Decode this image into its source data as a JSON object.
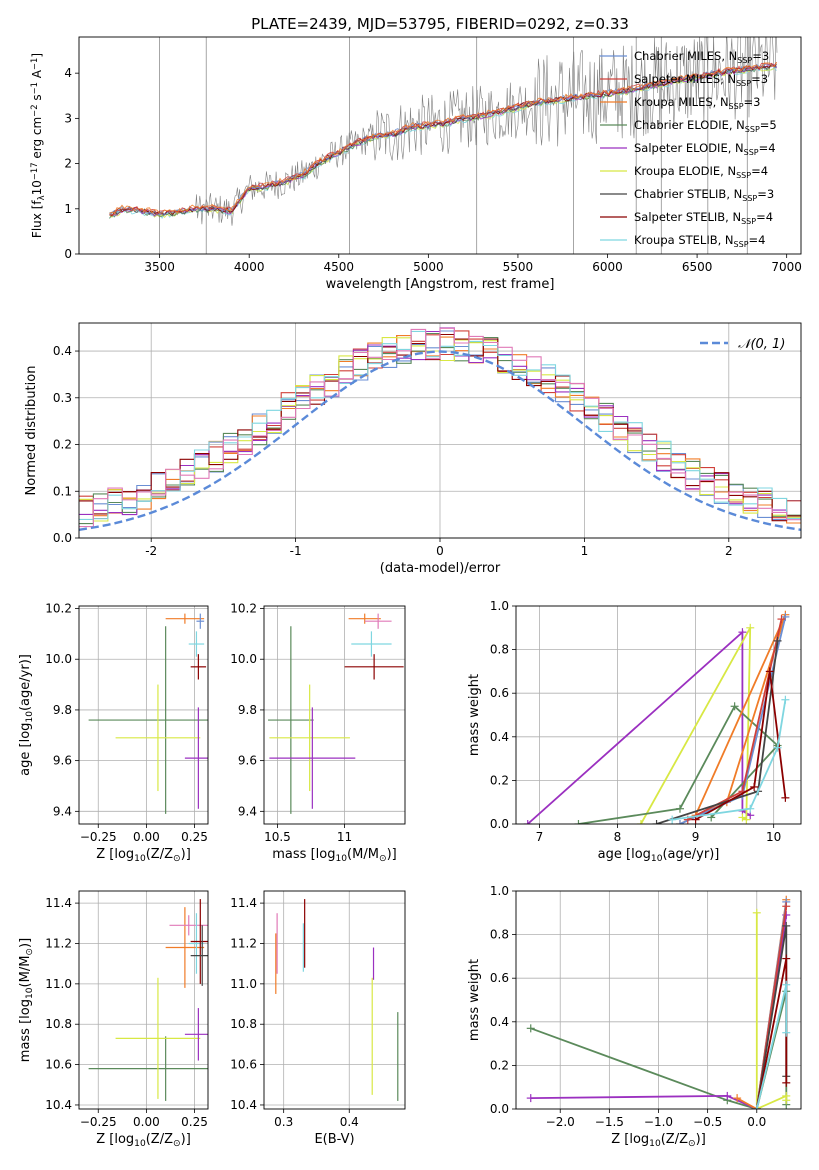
{
  "figure_title": "PLATE=2439, MJD=53795, FIBERID=0292, z=0.33",
  "colors": {
    "data": "#808080",
    "chabrier_miles": "#6b8fd4",
    "salpeter_miles": "#d0403a",
    "kroupa_miles": "#f07c28",
    "chabrier_elodie": "#5b8a5b",
    "salpeter_elodie": "#9b30c0",
    "kroupa_elodie": "#d8e844",
    "chabrier_stelib": "#444444",
    "salpeter_stelib": "#8b0000",
    "kroupa_stelib": "#7fd6e0",
    "pink": "#e07ab8",
    "normal": "#5b8ad8",
    "grid": "#b0b0b0"
  },
  "chart_data": [
    {
      "id": "spectrum",
      "type": "line",
      "xlabel": "wavelength [Angstrom, rest frame]",
      "ylabel_parts": [
        "Flux [f",
        "λ",
        "10",
        "−17",
        " erg cm",
        "−2",
        " s",
        "−1",
        " A",
        "−1",
        "]"
      ],
      "xlim": [
        3050,
        7080
      ],
      "ylim": [
        0,
        4.8
      ],
      "xticks": [
        3500,
        4000,
        4500,
        5000,
        5500,
        6000,
        6500,
        7000
      ],
      "yticks": [
        0,
        1,
        2,
        3,
        4
      ],
      "grid": false,
      "legend_location": "upper right",
      "continuum_x": [
        3220,
        3300,
        3400,
        3500,
        3600,
        3700,
        3800,
        3900,
        4000,
        4100,
        4200,
        4300,
        4400,
        4500,
        4600,
        4700,
        4800,
        4900,
        5000,
        5100,
        5200,
        5300,
        5400,
        5500,
        5600,
        5700,
        5800,
        5900,
        6000,
        6100,
        6200,
        6300,
        6400,
        6500,
        6600,
        6700,
        6800,
        6900
      ],
      "continuum_y": [
        0.85,
        1.0,
        0.95,
        0.88,
        0.92,
        1.0,
        1.0,
        0.95,
        1.45,
        1.5,
        1.6,
        1.75,
        2.05,
        2.25,
        2.45,
        2.6,
        2.65,
        2.8,
        2.85,
        2.9,
        3.0,
        3.05,
        3.15,
        3.25,
        3.35,
        3.4,
        3.45,
        3.5,
        3.55,
        3.6,
        3.7,
        3.75,
        3.85,
        3.9,
        4.0,
        4.05,
        4.1,
        4.15
      ],
      "legend": [
        {
          "label": "Chabrier MILES, N",
          "sub": "SSP",
          "tail": "=3",
          "color_key": "chabrier_miles"
        },
        {
          "label": "Salpeter MILES, N",
          "sub": "SSP",
          "tail": "=3",
          "color_key": "salpeter_miles"
        },
        {
          "label": "Kroupa MILES, N",
          "sub": "SSP",
          "tail": "=3",
          "color_key": "kroupa_miles"
        },
        {
          "label": "Chabrier ELODIE, N",
          "sub": "SSP",
          "tail": "=5",
          "color_key": "chabrier_elodie"
        },
        {
          "label": "Salpeter ELODIE, N",
          "sub": "SSP",
          "tail": "=4",
          "color_key": "salpeter_elodie"
        },
        {
          "label": "Kroupa ELODIE, N",
          "sub": "SSP",
          "tail": "=4",
          "color_key": "kroupa_elodie"
        },
        {
          "label": "Chabrier STELIB, N",
          "sub": "SSP",
          "tail": "=3",
          "color_key": "chabrier_stelib"
        },
        {
          "label": "Salpeter STELIB, N",
          "sub": "SSP",
          "tail": "=4",
          "color_key": "salpeter_stelib"
        },
        {
          "label": "Kroupa STELIB, N",
          "sub": "SSP",
          "tail": "=4",
          "color_key": "kroupa_stelib"
        }
      ]
    },
    {
      "id": "residuals",
      "type": "histogram",
      "xlabel": "(data-model)/error",
      "ylabel": "Normed distribution",
      "xlim": [
        -2.5,
        2.5
      ],
      "ylim": [
        0,
        0.46
      ],
      "xticks": [
        -2,
        -1,
        0,
        1,
        2
      ],
      "yticks": [
        0.0,
        0.1,
        0.2,
        0.3,
        0.4
      ],
      "grid": true,
      "bin_width": 0.1,
      "legend_label": "𝒩(0, 1)",
      "legend_location": "upper right"
    },
    {
      "id": "age_vs_Z",
      "type": "errorbar",
      "xlabel_parts": [
        "Z [log",
        "10",
        "(Z/Z",
        "⊙",
        ")]"
      ],
      "ylabel_parts": [
        "age  [log",
        "10",
        "(age/yr)]"
      ],
      "xlim": [
        -0.35,
        0.32
      ],
      "ylim": [
        9.35,
        10.21
      ],
      "xticks": [
        -0.25,
        0.0,
        0.25
      ],
      "xtick_labels": [
        "−0.25",
        "0.00",
        "0.25"
      ],
      "yticks": [
        9.4,
        9.6,
        9.8,
        10.0,
        10.2
      ],
      "grid": true,
      "points": [
        {
          "x": 0.1,
          "xerr": 0.4,
          "y": 9.76,
          "yerr": 0.37,
          "color_key": "chabrier_elodie"
        },
        {
          "x": 0.06,
          "xerr": 0.22,
          "y": 9.69,
          "yerr": 0.21,
          "color_key": "kroupa_elodie"
        },
        {
          "x": 0.27,
          "xerr": 0.07,
          "y": 9.61,
          "yerr": 0.2,
          "color_key": "salpeter_elodie"
        },
        {
          "x": 0.26,
          "xerr": 0.04,
          "y": 10.06,
          "yerr": 0.05,
          "color_key": "kroupa_stelib"
        },
        {
          "x": 0.27,
          "xerr": 0.04,
          "y": 9.97,
          "yerr": 0.05,
          "color_key": "salpeter_stelib"
        },
        {
          "x": 0.2,
          "xerr": 0.1,
          "y": 10.16,
          "yerr": 0.02,
          "color_key": "kroupa_miles"
        },
        {
          "x": 0.28,
          "xerr": 0.02,
          "y": 10.15,
          "yerr": 0.03,
          "color_key": "chabrier_miles"
        }
      ]
    },
    {
      "id": "age_vs_mass",
      "type": "errorbar",
      "xlabel_parts": [
        "mass [log",
        "10",
        "(M/M",
        "⊙",
        ")]"
      ],
      "xlim": [
        10.4,
        11.45
      ],
      "ylim": [
        9.35,
        10.21
      ],
      "xticks": [
        10.5,
        11.0
      ],
      "yticks": [
        9.4,
        9.6,
        9.8,
        10.0,
        10.2
      ],
      "grid": true,
      "points": [
        {
          "x": 10.6,
          "xerr": 0.17,
          "y": 9.76,
          "yerr": 0.37,
          "color_key": "chabrier_elodie"
        },
        {
          "x": 10.74,
          "xerr": 0.3,
          "y": 9.69,
          "yerr": 0.21,
          "color_key": "kroupa_elodie"
        },
        {
          "x": 10.76,
          "xerr": 0.32,
          "y": 9.61,
          "yerr": 0.2,
          "color_key": "salpeter_elodie"
        },
        {
          "x": 11.2,
          "xerr": 0.15,
          "y": 10.06,
          "yerr": 0.05,
          "color_key": "kroupa_stelib"
        },
        {
          "x": 11.22,
          "xerr": 0.22,
          "y": 9.97,
          "yerr": 0.05,
          "color_key": "salpeter_stelib"
        },
        {
          "x": 11.15,
          "xerr": 0.12,
          "y": 10.16,
          "yerr": 0.02,
          "color_key": "kroupa_miles"
        },
        {
          "x": 11.25,
          "xerr": 0.1,
          "y": 10.15,
          "yerr": 0.03,
          "color_key": "pink"
        }
      ]
    },
    {
      "id": "mass_weight_vs_age",
      "type": "line",
      "xlabel_parts": [
        "age  [log",
        "10",
        "(age/yr)]"
      ],
      "ylabel": "mass weight",
      "xlim": [
        6.7,
        10.35
      ],
      "ylim": [
        0,
        1.0
      ],
      "xticks": [
        7,
        8,
        9,
        10
      ],
      "yticks": [
        0.0,
        0.2,
        0.4,
        0.6,
        0.8,
        1.0
      ],
      "grid": true,
      "series": [
        {
          "color_key": "salpeter_elodie",
          "x": [
            6.85,
            9.6,
            9.6,
            9.7
          ],
          "y": [
            0.0,
            0.88,
            0.06,
            0.04
          ]
        },
        {
          "color_key": "kroupa_elodie",
          "x": [
            8.3,
            9.7,
            9.65,
            9.6
          ],
          "y": [
            0.0,
            0.9,
            0.02,
            0.03
          ]
        },
        {
          "color_key": "chabrier_elodie",
          "x": [
            7.5,
            8.8,
            9.5,
            10.05,
            9.2
          ],
          "y": [
            0.0,
            0.07,
            0.54,
            0.36,
            0.03
          ]
        },
        {
          "color_key": "kroupa_miles",
          "x": [
            8.8,
            9.4,
            10.15,
            9.0
          ],
          "y": [
            0.0,
            0.1,
            0.96,
            0.04
          ]
        },
        {
          "color_key": "chabrier_miles",
          "x": [
            8.8,
            9.6,
            10.15
          ],
          "y": [
            0.0,
            0.13,
            0.95
          ]
        },
        {
          "color_key": "salpeter_miles",
          "x": [
            8.9,
            9.6,
            10.1
          ],
          "y": [
            0.02,
            0.15,
            0.94
          ]
        },
        {
          "color_key": "chabrier_stelib",
          "x": [
            8.5,
            9.8,
            10.05
          ],
          "y": [
            0.0,
            0.15,
            0.84
          ]
        },
        {
          "color_key": "salpeter_stelib",
          "x": [
            9.0,
            9.75,
            9.95,
            10.15
          ],
          "y": [
            0.02,
            0.17,
            0.7,
            0.12
          ]
        },
        {
          "color_key": "kroupa_stelib",
          "x": [
            8.7,
            9.7,
            10.05,
            10.15
          ],
          "y": [
            0.02,
            0.07,
            0.35,
            0.57
          ]
        }
      ]
    },
    {
      "id": "mass_vs_Z",
      "type": "errorbar",
      "xlabel_parts": [
        "Z [log",
        "10",
        "(Z/Z",
        "⊙",
        ")]"
      ],
      "ylabel_parts": [
        "mass [log",
        "10",
        "(M/M",
        "⊙",
        ")]"
      ],
      "xlim": [
        -0.35,
        0.32
      ],
      "ylim": [
        10.38,
        11.46
      ],
      "xticks": [
        -0.25,
        0.0,
        0.25
      ],
      "xtick_labels": [
        "−0.25",
        "0.00",
        "0.25"
      ],
      "yticks": [
        10.4,
        10.6,
        10.8,
        11.0,
        11.2,
        11.4
      ],
      "grid": true,
      "points": [
        {
          "x": 0.1,
          "xerr": 0.4,
          "y": 10.58,
          "yerr": 0.16,
          "color_key": "chabrier_elodie"
        },
        {
          "x": 0.06,
          "xerr": 0.22,
          "y": 10.73,
          "yerr": 0.3,
          "color_key": "kroupa_elodie"
        },
        {
          "x": 0.27,
          "xerr": 0.07,
          "y": 10.75,
          "yerr": 0.13,
          "color_key": "salpeter_elodie"
        },
        {
          "x": 0.2,
          "xerr": 0.1,
          "y": 11.18,
          "yerr": 0.2,
          "color_key": "kroupa_miles"
        },
        {
          "x": 0.22,
          "xerr": 0.1,
          "y": 11.29,
          "yerr": 0.05,
          "color_key": "pink"
        },
        {
          "x": 0.26,
          "xerr": 0.04,
          "y": 11.2,
          "yerr": 0.15,
          "color_key": "kroupa_stelib"
        },
        {
          "x": 0.28,
          "xerr": 0.05,
          "y": 11.21,
          "yerr": 0.21,
          "color_key": "salpeter_stelib"
        },
        {
          "x": 0.29,
          "xerr": 0.06,
          "y": 11.14,
          "yerr": 0.15,
          "color_key": "chabrier_stelib"
        }
      ]
    },
    {
      "id": "mass_vs_ebv",
      "type": "errorbar",
      "xlabel": "E(B-V)",
      "xlim": [
        0.27,
        0.485
      ],
      "ylim": [
        10.38,
        11.46
      ],
      "xticks": [
        0.3,
        0.4
      ],
      "yticks": [
        10.4,
        10.6,
        10.8,
        11.0,
        11.2,
        11.4
      ],
      "grid": true,
      "points": [
        {
          "x": 0.288,
          "xerr": 0.0,
          "y": 11.1,
          "yerr": 0.15,
          "color_key": "kroupa_miles"
        },
        {
          "x": 0.29,
          "xerr": 0.0,
          "y": 11.2,
          "yerr": 0.15,
          "color_key": "pink"
        },
        {
          "x": 0.33,
          "xerr": 0.0,
          "y": 11.18,
          "yerr": 0.12,
          "color_key": "kroupa_stelib"
        },
        {
          "x": 0.332,
          "xerr": 0.0,
          "y": 11.25,
          "yerr": 0.17,
          "color_key": "salpeter_stelib"
        },
        {
          "x": 0.435,
          "xerr": 0.0,
          "y": 10.74,
          "yerr": 0.29,
          "color_key": "kroupa_elodie"
        },
        {
          "x": 0.437,
          "xerr": 0.0,
          "y": 11.1,
          "yerr": 0.08,
          "color_key": "salpeter_elodie"
        },
        {
          "x": 0.474,
          "xerr": 0.0,
          "y": 10.64,
          "yerr": 0.22,
          "color_key": "chabrier_elodie"
        }
      ]
    },
    {
      "id": "mass_weight_vs_Z",
      "type": "line",
      "xlabel_parts": [
        "Z [log",
        "10",
        "(Z/Z",
        "⊙",
        ")]"
      ],
      "ylabel": "mass weight",
      "xlim": [
        -2.45,
        0.45
      ],
      "ylim": [
        0,
        1.0
      ],
      "xticks": [
        -2.0,
        -1.5,
        -1.0,
        -0.5,
        0.0
      ],
      "xtick_labels": [
        "−2.0",
        "−1.5",
        "−1.0",
        "−0.5",
        "0.0"
      ],
      "yticks": [
        0.0,
        0.2,
        0.4,
        0.6,
        0.8,
        1.0
      ],
      "grid": true,
      "series": [
        {
          "color_key": "chabrier_elodie",
          "x": [
            -2.3,
            -0.3,
            0.0,
            0.3,
            0.3
          ],
          "y": [
            0.37,
            0.04,
            0.0,
            0.54,
            0.02
          ]
        },
        {
          "color_key": "salpeter_elodie",
          "x": [
            -2.3,
            -0.3,
            0.0,
            0.3
          ],
          "y": [
            0.05,
            0.06,
            0.0,
            0.89
          ]
        },
        {
          "color_key": "kroupa_elodie",
          "x": [
            0.0,
            0.0,
            0.3,
            0.3
          ],
          "y": [
            0.9,
            0.0,
            0.06,
            0.04
          ]
        },
        {
          "color_key": "kroupa_miles",
          "x": [
            -0.2,
            0.0,
            0.3
          ],
          "y": [
            0.05,
            0.0,
            0.96
          ]
        },
        {
          "color_key": "chabrier_miles",
          "x": [
            0.0,
            0.3
          ],
          "y": [
            0.0,
            0.95
          ]
        },
        {
          "color_key": "salpeter_miles",
          "x": [
            0.0,
            0.3
          ],
          "y": [
            0.0,
            0.93
          ]
        },
        {
          "color_key": "chabrier_stelib",
          "x": [
            0.0,
            0.3,
            0.3
          ],
          "y": [
            0.0,
            0.84,
            0.15
          ]
        },
        {
          "color_key": "salpeter_stelib",
          "x": [
            0.0,
            0.3,
            0.3
          ],
          "y": [
            0.0,
            0.69,
            0.12
          ]
        },
        {
          "color_key": "kroupa_stelib",
          "x": [
            0.0,
            0.3,
            0.3
          ],
          "y": [
            0.0,
            0.57,
            0.35
          ]
        }
      ]
    }
  ]
}
